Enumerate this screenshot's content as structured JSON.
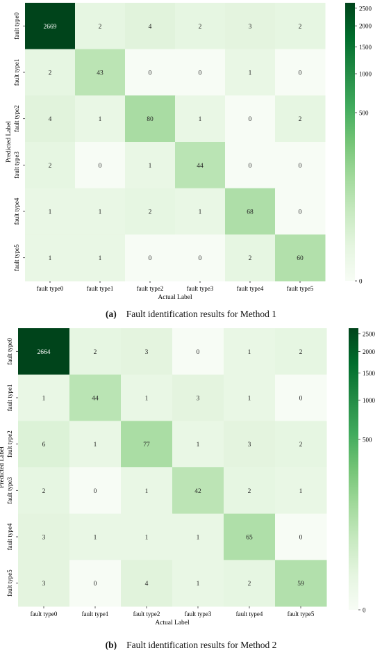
{
  "chart_data": [
    {
      "type": "heatmap",
      "title": "",
      "xlabel": "Actual Label",
      "ylabel": "Predicted Label",
      "x_categories": [
        "fault type0",
        "fault type1",
        "fault type2",
        "fault type3",
        "fault type4",
        "fault type5"
      ],
      "y_categories": [
        "fault type0",
        "fault type1",
        "fault type2",
        "fault type3",
        "fault type4",
        "fault type5"
      ],
      "values": [
        [
          2669,
          2,
          4,
          2,
          3,
          2
        ],
        [
          2,
          43,
          0,
          0,
          1,
          0
        ],
        [
          4,
          1,
          80,
          1,
          0,
          2
        ],
        [
          2,
          0,
          1,
          44,
          0,
          0
        ],
        [
          1,
          1,
          2,
          1,
          68,
          0
        ],
        [
          1,
          1,
          0,
          0,
          2,
          60
        ]
      ],
      "colorbar_ticks": [
        "2500",
        "2000",
        "1500",
        "1000",
        "500",
        "0"
      ],
      "colormap": "Greens",
      "color_scale": "power"
    },
    {
      "type": "heatmap",
      "title": "",
      "xlabel": "Actual Label",
      "ylabel": "Predicted Label",
      "x_categories": [
        "fault type0",
        "fault type1",
        "fault type2",
        "fault type3",
        "fault type4",
        "fault type5"
      ],
      "y_categories": [
        "fault type0",
        "fault type1",
        "fault type2",
        "fault type3",
        "fault type4",
        "fault type5"
      ],
      "values": [
        [
          2664,
          2,
          3,
          0,
          1,
          2
        ],
        [
          1,
          44,
          1,
          3,
          1,
          0
        ],
        [
          6,
          1,
          77,
          1,
          3,
          2
        ],
        [
          2,
          0,
          1,
          42,
          2,
          1
        ],
        [
          3,
          1,
          1,
          1,
          65,
          0
        ],
        [
          3,
          0,
          4,
          1,
          2,
          59
        ]
      ],
      "colorbar_ticks": [
        "2500",
        "2000",
        "1500",
        "1000",
        "500",
        "0"
      ],
      "colormap": "Greens",
      "color_scale": "power"
    }
  ],
  "captions": [
    {
      "label": "(a)",
      "text": "Fault identification results for Method 1"
    },
    {
      "label": "(b)",
      "text": "Fault identification results for Method 2"
    }
  ]
}
